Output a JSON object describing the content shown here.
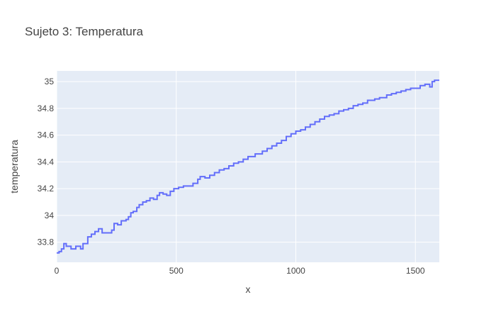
{
  "chart_data": {
    "type": "line",
    "title": "Sujeto 3: Temperatura",
    "xlabel": "x",
    "ylabel": "temperatura",
    "xlim": [
      0,
      1600
    ],
    "ylim": [
      33.65,
      35.08
    ],
    "x_ticks": [
      0,
      500,
      1000,
      1500
    ],
    "x_tick_labels": [
      "0",
      "500",
      "1000",
      "1500"
    ],
    "y_ticks": [
      33.8,
      34,
      34.2,
      34.4,
      34.6,
      34.8,
      35
    ],
    "y_tick_labels": [
      "33.8",
      "34",
      "34.2",
      "34.4",
      "34.6",
      "34.8",
      "35"
    ],
    "grid": true,
    "line_shape": "step",
    "colors": {
      "line": "#636efa",
      "plot_bg": "#e5ecf6",
      "grid": "#ffffff"
    },
    "series": [
      {
        "x": [
          0,
          10,
          20,
          30,
          40,
          60,
          80,
          100,
          110,
          130,
          145,
          160,
          175,
          190,
          210,
          230,
          240,
          255,
          270,
          290,
          300,
          310,
          320,
          335,
          345,
          360,
          375,
          390,
          405,
          420,
          430,
          445,
          460,
          475,
          490,
          510,
          530,
          550,
          570,
          590,
          600,
          620,
          640,
          660,
          680,
          700,
          720,
          740,
          760,
          780,
          800,
          830,
          860,
          880,
          900,
          920,
          940,
          960,
          980,
          1000,
          1020,
          1040,
          1060,
          1080,
          1100,
          1120,
          1140,
          1160,
          1180,
          1200,
          1220,
          1240,
          1260,
          1280,
          1300,
          1330,
          1350,
          1380,
          1400,
          1420,
          1440,
          1460,
          1480,
          1500,
          1520,
          1540,
          1560,
          1570,
          1580,
          1600
        ],
        "y": [
          33.72,
          33.73,
          33.75,
          33.79,
          33.77,
          33.75,
          33.77,
          33.75,
          33.79,
          33.84,
          33.86,
          33.88,
          33.9,
          33.87,
          33.87,
          33.89,
          33.94,
          33.93,
          33.96,
          33.97,
          33.99,
          34.02,
          34.03,
          34.06,
          34.08,
          34.1,
          34.11,
          34.13,
          34.12,
          34.15,
          34.17,
          34.16,
          34.15,
          34.18,
          34.2,
          34.21,
          34.22,
          34.22,
          34.24,
          34.27,
          34.29,
          34.28,
          34.3,
          34.32,
          34.34,
          34.35,
          34.37,
          34.39,
          34.4,
          34.42,
          34.44,
          34.46,
          34.48,
          34.5,
          34.52,
          34.54,
          34.56,
          34.59,
          34.61,
          34.63,
          34.64,
          34.66,
          34.68,
          34.7,
          34.72,
          34.74,
          34.75,
          34.76,
          34.78,
          34.79,
          34.8,
          34.82,
          34.83,
          34.84,
          34.86,
          34.87,
          34.88,
          34.9,
          34.91,
          34.92,
          34.93,
          34.94,
          34.95,
          34.95,
          34.97,
          34.98,
          34.96,
          35.0,
          35.01,
          35.01
        ]
      }
    ]
  }
}
